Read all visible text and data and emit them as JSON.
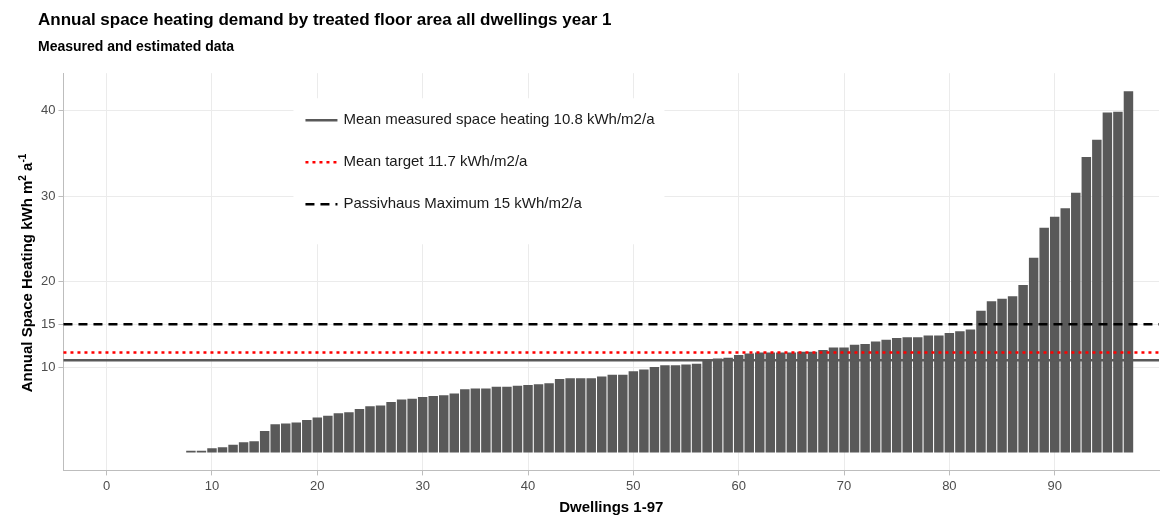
{
  "chart_data": {
    "type": "bar",
    "title": "Annual space heating demand by treated floor area all dwellings year 1",
    "subtitle": "Measured and estimated data",
    "xlabel": "Dwellings 1-97",
    "ylabel": "Annual Space Heating kWh m$^{2}$ a$^{-1}$",
    "x": [
      8,
      9,
      10,
      11,
      12,
      13,
      14,
      15,
      16,
      17,
      18,
      19,
      20,
      21,
      22,
      23,
      24,
      25,
      26,
      27,
      28,
      29,
      30,
      31,
      32,
      33,
      34,
      35,
      36,
      37,
      38,
      39,
      40,
      41,
      42,
      43,
      44,
      45,
      46,
      47,
      48,
      49,
      50,
      51,
      52,
      53,
      54,
      55,
      56,
      57,
      58,
      59,
      60,
      61,
      62,
      63,
      64,
      65,
      66,
      67,
      68,
      69,
      70,
      71,
      72,
      73,
      74,
      75,
      76,
      77,
      78,
      79,
      80,
      81,
      82,
      83,
      84,
      85,
      86,
      87,
      88,
      89,
      90,
      91,
      92,
      93,
      94,
      95,
      96,
      97
    ],
    "values": [
      0.2,
      0.2,
      0.5,
      0.6,
      0.9,
      1.2,
      1.3,
      2.5,
      3.3,
      3.4,
      3.5,
      3.8,
      4.1,
      4.3,
      4.6,
      4.7,
      5.1,
      5.4,
      5.5,
      5.9,
      6.2,
      6.3,
      6.5,
      6.6,
      6.7,
      6.9,
      7.4,
      7.5,
      7.5,
      7.7,
      7.7,
      7.8,
      7.9,
      8.0,
      8.1,
      8.6,
      8.7,
      8.7,
      8.7,
      8.9,
      9.1,
      9.1,
      9.5,
      9.7,
      10.0,
      10.2,
      10.2,
      10.3,
      10.4,
      10.9,
      11.0,
      11.1,
      11.4,
      11.6,
      11.7,
      11.7,
      11.7,
      11.7,
      11.8,
      11.8,
      12.0,
      12.3,
      12.3,
      12.6,
      12.7,
      13.0,
      13.2,
      13.4,
      13.5,
      13.5,
      13.7,
      13.7,
      14.0,
      14.2,
      14.4,
      16.6,
      17.7,
      18.0,
      18.3,
      19.6,
      22.8,
      26.3,
      27.6,
      28.6,
      30.4,
      34.6,
      36.6,
      39.8,
      39.9,
      42.3
    ],
    "color": "#595959",
    "xlim": [
      -4.1,
      99.9
    ],
    "xticks": [
      0,
      10,
      20,
      30,
      40,
      50,
      60,
      70,
      80,
      90
    ],
    "ylim": [
      -2.1,
      44.4
    ],
    "yticks": [
      10,
      15,
      20,
      30,
      40
    ],
    "grid": true,
    "legend": "top left",
    "ref_lines": [
      {
        "axis": "y",
        "value": 10.8,
        "label": "Mean measured space heating 10.8 kWh/m2/a",
        "color": "#595959",
        "line_style": "solid"
      },
      {
        "axis": "y",
        "value": 11.7,
        "label": "Mean target 11.7 kWh/m2/a",
        "color": "#ff0000",
        "line_style": "dotted"
      },
      {
        "axis": "y",
        "value": 15,
        "label": "Passivhaus Maximum 15 kWh/m2/a",
        "color": "#000000",
        "line_style": "dashed"
      }
    ]
  }
}
